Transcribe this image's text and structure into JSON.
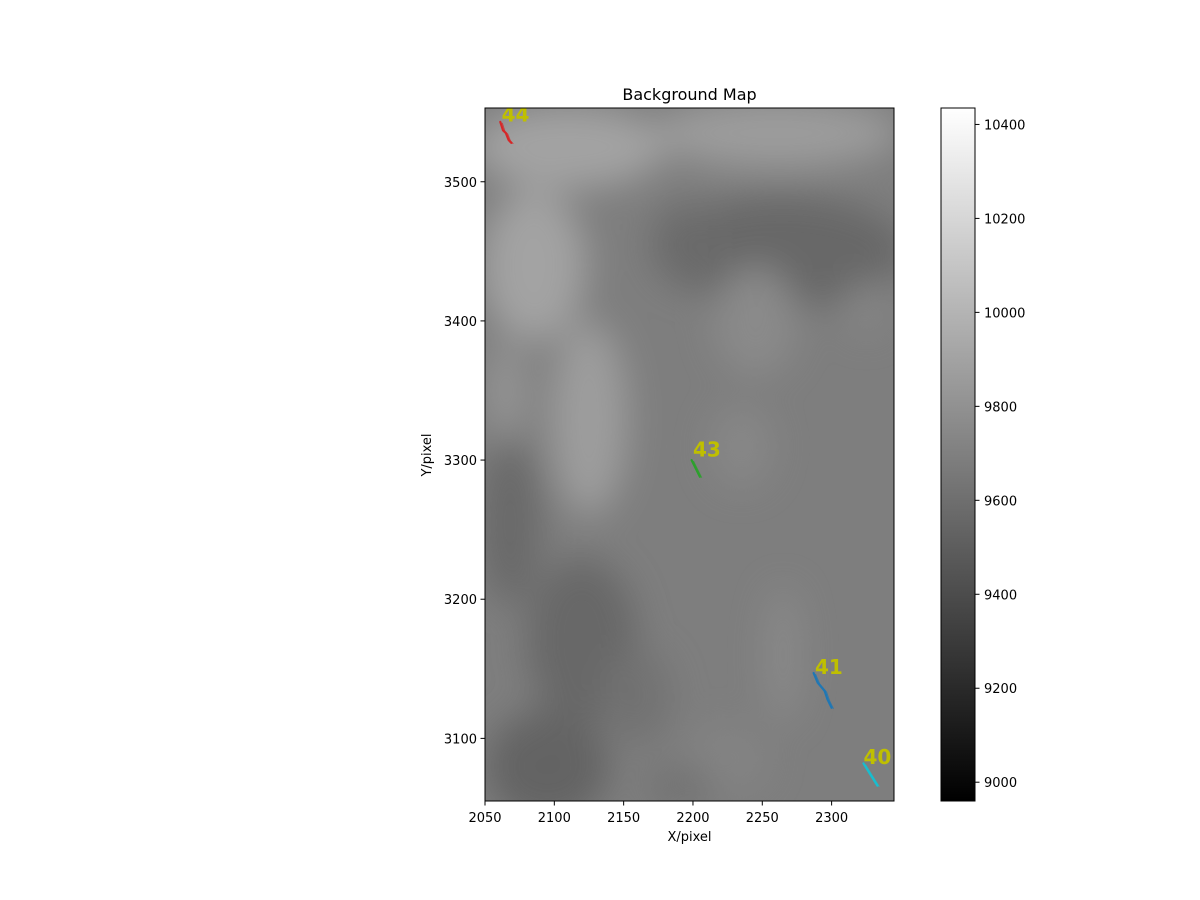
{
  "chart_data": {
    "type": "heatmap",
    "title": "Background Map",
    "xlabel": "X/pixel",
    "ylabel": "Y/pixel",
    "xlim": [
      2050,
      2345
    ],
    "ylim": [
      3055,
      3553
    ],
    "x_ticks": [
      2050,
      2100,
      2150,
      2200,
      2250,
      2300
    ],
    "y_ticks": [
      3100,
      3200,
      3300,
      3400,
      3500
    ],
    "grid": false,
    "colormap": "gray",
    "colorbar": {
      "range": [
        8960,
        10435
      ],
      "ticks": [
        9000,
        9200,
        9400,
        9600,
        9800,
        10000,
        10200,
        10400
      ]
    },
    "background_regions": [
      {
        "x": 2085,
        "y": 3440,
        "rx": 38,
        "ry": 55,
        "value": 9900
      },
      {
        "x": 2125,
        "y": 3330,
        "rx": 28,
        "ry": 70,
        "value": 9870
      },
      {
        "x": 2065,
        "y": 3350,
        "rx": 14,
        "ry": 35,
        "value": 9820
      },
      {
        "x": 2110,
        "y": 3525,
        "rx": 70,
        "ry": 30,
        "value": 9900
      },
      {
        "x": 2260,
        "y": 3535,
        "rx": 90,
        "ry": 25,
        "value": 9860
      },
      {
        "x": 2265,
        "y": 3450,
        "rx": 90,
        "ry": 40,
        "value": 9560
      },
      {
        "x": 2195,
        "y": 3455,
        "rx": 25,
        "ry": 30,
        "value": 9580
      },
      {
        "x": 2068,
        "y": 3255,
        "rx": 22,
        "ry": 60,
        "value": 9570
      },
      {
        "x": 2095,
        "y": 3080,
        "rx": 45,
        "ry": 40,
        "value": 9530
      },
      {
        "x": 2120,
        "y": 3170,
        "rx": 40,
        "ry": 60,
        "value": 9560
      },
      {
        "x": 2160,
        "y": 3130,
        "rx": 25,
        "ry": 35,
        "value": 9620
      },
      {
        "x": 2245,
        "y": 3400,
        "rx": 30,
        "ry": 40,
        "value": 9760
      },
      {
        "x": 2235,
        "y": 3310,
        "rx": 22,
        "ry": 30,
        "value": 9740
      },
      {
        "x": 2265,
        "y": 3160,
        "rx": 12,
        "ry": 50,
        "value": 9760
      },
      {
        "x": 2225,
        "y": 3085,
        "rx": 30,
        "ry": 25,
        "value": 9720
      },
      {
        "x": 2190,
        "y": 3065,
        "rx": 25,
        "ry": 15,
        "value": 9620
      },
      {
        "x": 2325,
        "y": 3410,
        "rx": 15,
        "ry": 20,
        "value": 9730
      }
    ],
    "series": [
      {
        "name": "40",
        "color": "#17becf",
        "points": [
          [
            2323,
            3082
          ],
          [
            2328,
            3074
          ],
          [
            2333,
            3066
          ]
        ],
        "label_at": [
          2323,
          3080
        ]
      },
      {
        "name": "41",
        "color": "#1f77b4",
        "points": [
          [
            2287,
            3147
          ],
          [
            2290,
            3140
          ],
          [
            2295,
            3134
          ],
          [
            2297,
            3128
          ],
          [
            2300,
            3122
          ]
        ],
        "label_at": [
          2288,
          3145
        ]
      },
      {
        "name": "43",
        "color": "#2ca02c",
        "points": [
          [
            2199,
            3300
          ],
          [
            2202,
            3294
          ],
          [
            2205,
            3288
          ]
        ],
        "label_at": [
          2200,
          3301
        ]
      },
      {
        "name": "44",
        "color": "#d62728",
        "points": [
          [
            2061,
            3543
          ],
          [
            2063,
            3537
          ],
          [
            2065,
            3535
          ],
          [
            2067,
            3530
          ],
          [
            2069,
            3528
          ]
        ],
        "label_at": [
          2062,
          3542
        ]
      }
    ],
    "label_color": "#bfbf00"
  }
}
